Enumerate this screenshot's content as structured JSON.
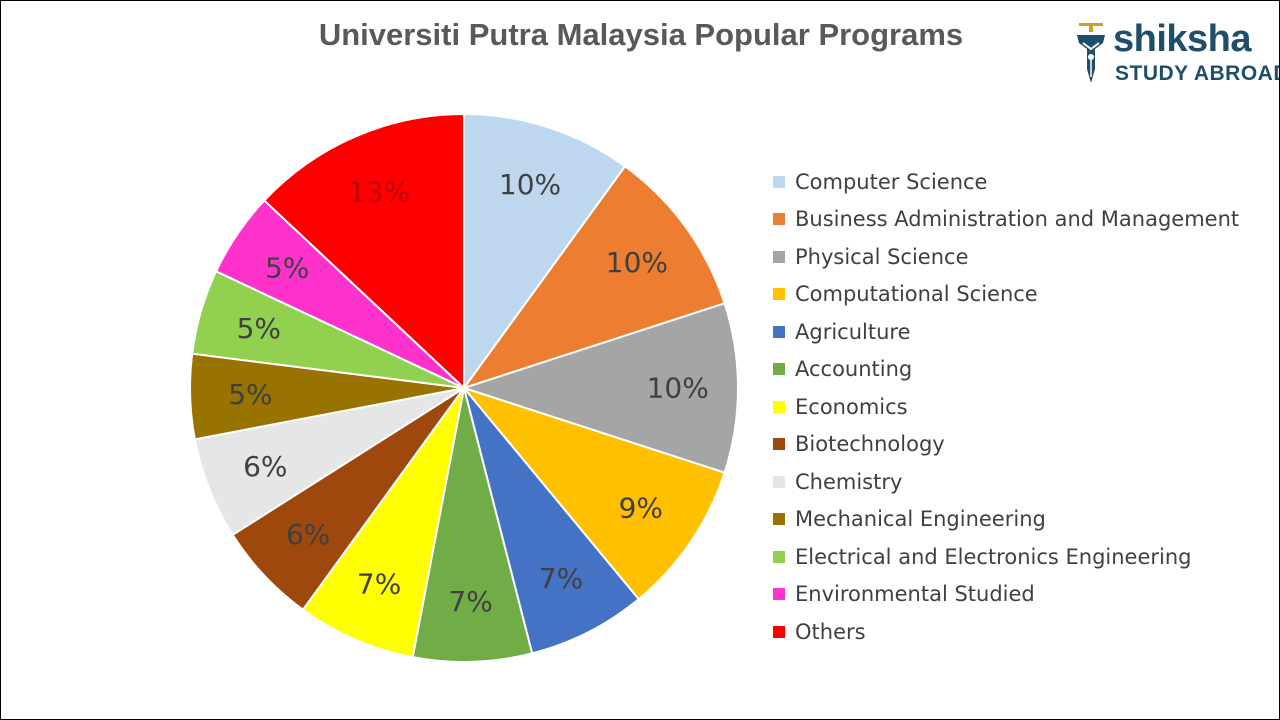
{
  "chart_data": {
    "type": "pie",
    "title": "Universiti Putra Malaysia Popular Programs",
    "legend_position": "right",
    "start_angle_deg": 0,
    "slices": [
      {
        "label": "Computer Science",
        "value": 10,
        "display": "10%",
        "color": "#BDD7EE",
        "label_color": "#404040"
      },
      {
        "label": "Business Administration and Management",
        "value": 10,
        "display": "10%",
        "color": "#ED7D31",
        "label_color": "#404040"
      },
      {
        "label": "Physical Science",
        "value": 10,
        "display": "10%",
        "color": "#A5A5A5",
        "label_color": "#404040"
      },
      {
        "label": "Computational Science",
        "value": 9,
        "display": "9%",
        "color": "#FFC000",
        "label_color": "#404040"
      },
      {
        "label": "Agriculture",
        "value": 7,
        "display": "7%",
        "color": "#4472C4",
        "label_color": "#404040"
      },
      {
        "label": "Accounting",
        "value": 7,
        "display": "7%",
        "color": "#70AD47",
        "label_color": "#404040"
      },
      {
        "label": "Economics",
        "value": 7,
        "display": "7%",
        "color": "#FFFF00",
        "label_color": "#404040"
      },
      {
        "label": "Biotechnology",
        "value": 6,
        "display": "6%",
        "color": "#9E480E",
        "label_color": "#404040"
      },
      {
        "label": "Chemistry",
        "value": 6,
        "display": "6%",
        "color": "#E7E6E6",
        "label_color": "#404040"
      },
      {
        "label": "Mechanical Engineering",
        "value": 5,
        "display": "5%",
        "color": "#997300",
        "label_color": "#404040"
      },
      {
        "label": "Electrical and Electronics Engineering",
        "value": 5,
        "display": "5%",
        "color": "#92D050",
        "label_color": "#404040"
      },
      {
        "label": "Environmental Studied",
        "value": 5,
        "display": "5%",
        "color": "#FF33CC",
        "label_color": "#404040"
      },
      {
        "label": "Others",
        "value": 13,
        "display": "13%",
        "color": "#FF0000",
        "label_color": "#C00000"
      }
    ]
  },
  "logo": {
    "name": "shiksha",
    "tagline": "STUDY ABROAD",
    "color": "#1F4E6B"
  }
}
